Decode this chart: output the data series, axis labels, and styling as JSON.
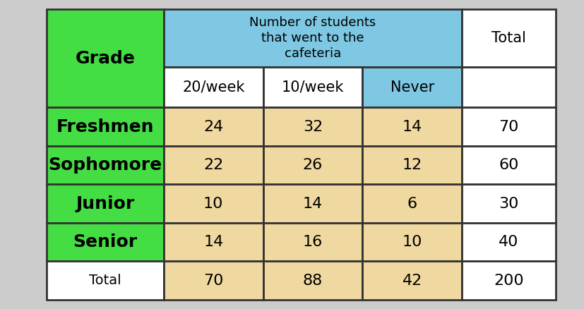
{
  "title": "Number of students\nthat went to the\ncafeteria",
  "row_labels": [
    "Freshmen",
    "Sophomore",
    "Junior",
    "Senior",
    "Total"
  ],
  "table_data": [
    [
      24,
      32,
      14,
      70
    ],
    [
      22,
      26,
      12,
      60
    ],
    [
      10,
      14,
      6,
      30
    ],
    [
      14,
      16,
      10,
      40
    ],
    [
      70,
      88,
      42,
      200
    ]
  ],
  "bg_color": "#cccccc",
  "green_color": "#44dd44",
  "blue_color": "#7ec8e3",
  "tan_color": "#f0d9a0",
  "white_color": "#ffffff",
  "border_color": "#333333",
  "grade_label_fontsize": 18,
  "data_fontsize": 16,
  "header_fontsize": 15,
  "total_label_fontsize": 14,
  "title_fontsize": 13
}
